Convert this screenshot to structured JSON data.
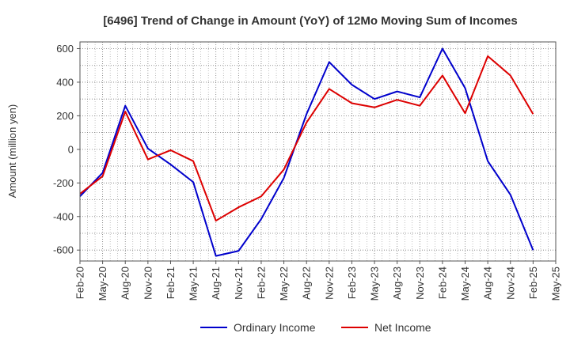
{
  "chart_data": {
    "type": "line",
    "title": "[6496]  Trend of Change in Amount (YoY) of 12Mo Moving Sum of Incomes",
    "xlabel": "",
    "ylabel": "Amount (million yen)",
    "categories": [
      "Feb-20",
      "May-20",
      "Aug-20",
      "Nov-20",
      "Feb-21",
      "May-21",
      "Aug-21",
      "Nov-21",
      "Feb-22",
      "May-22",
      "Aug-22",
      "Nov-22",
      "Feb-23",
      "May-23",
      "Aug-23",
      "Nov-23",
      "Feb-24",
      "May-24",
      "Aug-24",
      "Nov-24",
      "Feb-25",
      "May-25"
    ],
    "ylim": [
      -665,
      640
    ],
    "yticks": [
      -600,
      -400,
      -200,
      0,
      200,
      400,
      600
    ],
    "grid": true,
    "legend_position": "bottom",
    "series": [
      {
        "name": "Ordinary Income",
        "color": "#0000cc",
        "values": [
          -280,
          -140,
          260,
          5,
          -90,
          -195,
          -635,
          -605,
          -415,
          -170,
          210,
          520,
          385,
          300,
          345,
          310,
          600,
          365,
          -70,
          -270,
          -600,
          null
        ]
      },
      {
        "name": "Net Income",
        "color": "#dd0000",
        "values": [
          -265,
          -160,
          225,
          -60,
          -5,
          -70,
          -425,
          -345,
          -280,
          -120,
          160,
          360,
          275,
          250,
          295,
          260,
          440,
          215,
          555,
          440,
          210,
          null
        ]
      }
    ]
  }
}
